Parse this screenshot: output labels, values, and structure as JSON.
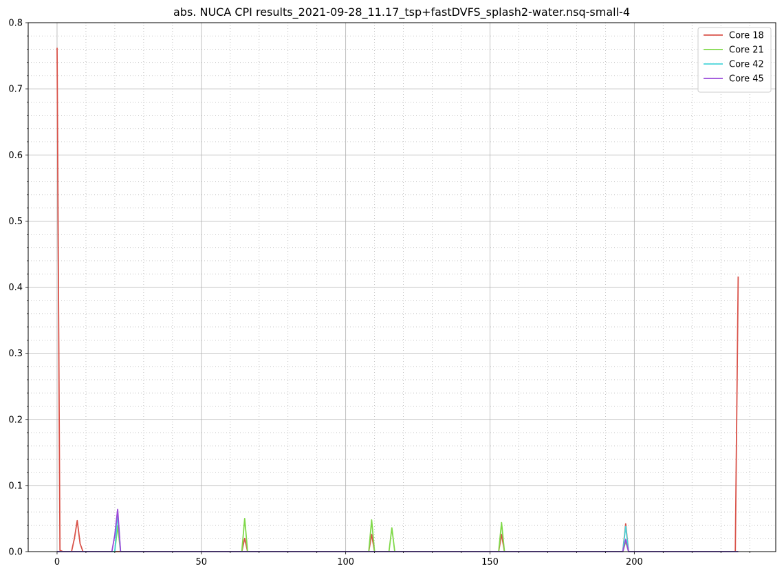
{
  "chart_data": {
    "type": "line",
    "title": "abs. NUCA CPI results_2021-09-28_11.17_tsp+fastDVFS_splash2-water.nsq-small-4",
    "xlabel": "",
    "ylabel": "",
    "xlim": [
      -10,
      249
    ],
    "ylim": [
      0,
      0.8
    ],
    "x_ticks": [
      0,
      50,
      100,
      150,
      200
    ],
    "y_ticks": [
      0.0,
      0.1,
      0.2,
      0.3,
      0.4,
      0.5,
      0.6,
      0.7,
      0.8
    ],
    "x_tick_labels": [
      "0",
      "50",
      "100",
      "150",
      "200"
    ],
    "y_tick_labels": [
      "0.0",
      "0.1",
      "0.2",
      "0.3",
      "0.4",
      "0.5",
      "0.6",
      "0.7",
      "0.8"
    ],
    "grid": "major solid, minor dotted",
    "legend_position": "top-right",
    "series": [
      {
        "name": "Core 18",
        "color": "#d9534a",
        "x": [
          0,
          1,
          2,
          5,
          6,
          7,
          8,
          9,
          64,
          65,
          66,
          108,
          109,
          110,
          153,
          154,
          155,
          196,
          197,
          198,
          235,
          236
        ],
        "y": [
          0.762,
          0.002,
          0.0,
          0.0,
          0.02,
          0.047,
          0.012,
          0.0,
          0.0,
          0.02,
          0.0,
          0.0,
          0.026,
          0.0,
          0.0,
          0.026,
          0.0,
          0.0,
          0.042,
          0.0,
          0.0,
          0.416
        ]
      },
      {
        "name": "Core 21",
        "color": "#80d94a",
        "x": [
          0,
          20,
          21,
          22,
          64,
          65,
          66,
          108,
          109,
          110,
          115,
          116,
          117,
          153,
          154,
          155,
          196,
          197,
          198,
          236
        ],
        "y": [
          0.0,
          0.0,
          0.039,
          0.0,
          0.0,
          0.05,
          0.0,
          0.0,
          0.048,
          0.0,
          0.0,
          0.036,
          0.0,
          0.0,
          0.044,
          0.0,
          0.0,
          0.015,
          0.0,
          0.0
        ]
      },
      {
        "name": "Core 42",
        "color": "#4ad4d9",
        "x": [
          0,
          20,
          21,
          22,
          196,
          197,
          198,
          236
        ],
        "y": [
          0.0,
          0.0,
          0.058,
          0.0,
          0.0,
          0.038,
          0.0,
          0.0
        ]
      },
      {
        "name": "Core 45",
        "color": "#9a4ad9",
        "x": [
          0,
          19,
          20,
          21,
          22,
          196,
          197,
          198,
          236
        ],
        "y": [
          0.0,
          0.0,
          0.025,
          0.064,
          0.0,
          0.0,
          0.018,
          0.0,
          0.0
        ]
      }
    ]
  }
}
